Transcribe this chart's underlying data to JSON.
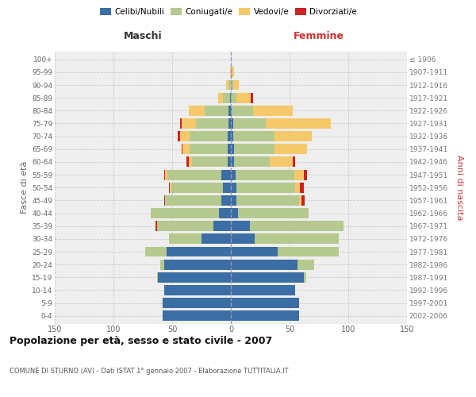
{
  "age_groups": [
    "0-4",
    "5-9",
    "10-14",
    "15-19",
    "20-24",
    "25-29",
    "30-34",
    "35-39",
    "40-44",
    "45-49",
    "50-54",
    "55-59",
    "60-64",
    "65-69",
    "70-74",
    "75-79",
    "80-84",
    "85-89",
    "90-94",
    "95-99",
    "100+"
  ],
  "birth_years": [
    "2002-2006",
    "1997-2001",
    "1992-1996",
    "1987-1991",
    "1982-1986",
    "1977-1981",
    "1972-1976",
    "1967-1971",
    "1962-1966",
    "1957-1961",
    "1952-1956",
    "1947-1951",
    "1942-1946",
    "1937-1941",
    "1932-1936",
    "1927-1931",
    "1922-1926",
    "1917-1921",
    "1912-1916",
    "1907-1911",
    "≤ 1906"
  ],
  "colors": {
    "celibe": "#3b6ea5",
    "coniugato": "#b5c98e",
    "vedovo": "#f5c96a",
    "divorziato": "#cc2222"
  },
  "males": {
    "celibe": [
      58,
      58,
      57,
      62,
      57,
      55,
      25,
      15,
      10,
      8,
      7,
      8,
      3,
      3,
      3,
      2,
      2,
      1,
      0,
      0,
      0
    ],
    "coniugato": [
      0,
      0,
      0,
      1,
      3,
      18,
      28,
      48,
      58,
      48,
      44,
      46,
      30,
      32,
      32,
      28,
      20,
      6,
      2,
      0,
      0
    ],
    "vedovo": [
      0,
      0,
      0,
      0,
      0,
      0,
      0,
      0,
      0,
      0,
      1,
      2,
      3,
      6,
      8,
      12,
      14,
      4,
      2,
      1,
      0
    ],
    "divorziato": [
      0,
      0,
      0,
      0,
      0,
      0,
      0,
      1,
      0,
      1,
      1,
      1,
      2,
      1,
      2,
      1,
      0,
      0,
      0,
      0,
      0
    ]
  },
  "females": {
    "nubile": [
      58,
      58,
      55,
      62,
      57,
      40,
      20,
      16,
      6,
      5,
      5,
      4,
      3,
      3,
      2,
      2,
      1,
      0,
      0,
      0,
      0
    ],
    "coniugata": [
      0,
      0,
      0,
      2,
      14,
      52,
      72,
      80,
      60,
      53,
      50,
      50,
      30,
      34,
      35,
      28,
      18,
      5,
      2,
      1,
      0
    ],
    "vedova": [
      0,
      0,
      0,
      0,
      0,
      0,
      0,
      0,
      0,
      2,
      4,
      8,
      20,
      28,
      32,
      55,
      34,
      12,
      5,
      2,
      0
    ],
    "divorziata": [
      0,
      0,
      0,
      0,
      0,
      0,
      0,
      0,
      0,
      3,
      3,
      3,
      2,
      0,
      0,
      0,
      0,
      2,
      0,
      0,
      0
    ]
  },
  "xlim": 150,
  "title": "Popolazione per età, sesso e stato civile - 2007",
  "subtitle": "COMUNE DI STURNO (AV) - Dati ISTAT 1° gennaio 2007 - Elaborazione TUTTITALIA.IT",
  "xlabel_left": "Maschi",
  "xlabel_right": "Femmine",
  "ylabel_left": "Fasce di età",
  "ylabel_right": "Anni di nascita",
  "background_color": "#ffffff",
  "plot_bg_color": "#eeeeee",
  "grid_color": "#cccccc"
}
